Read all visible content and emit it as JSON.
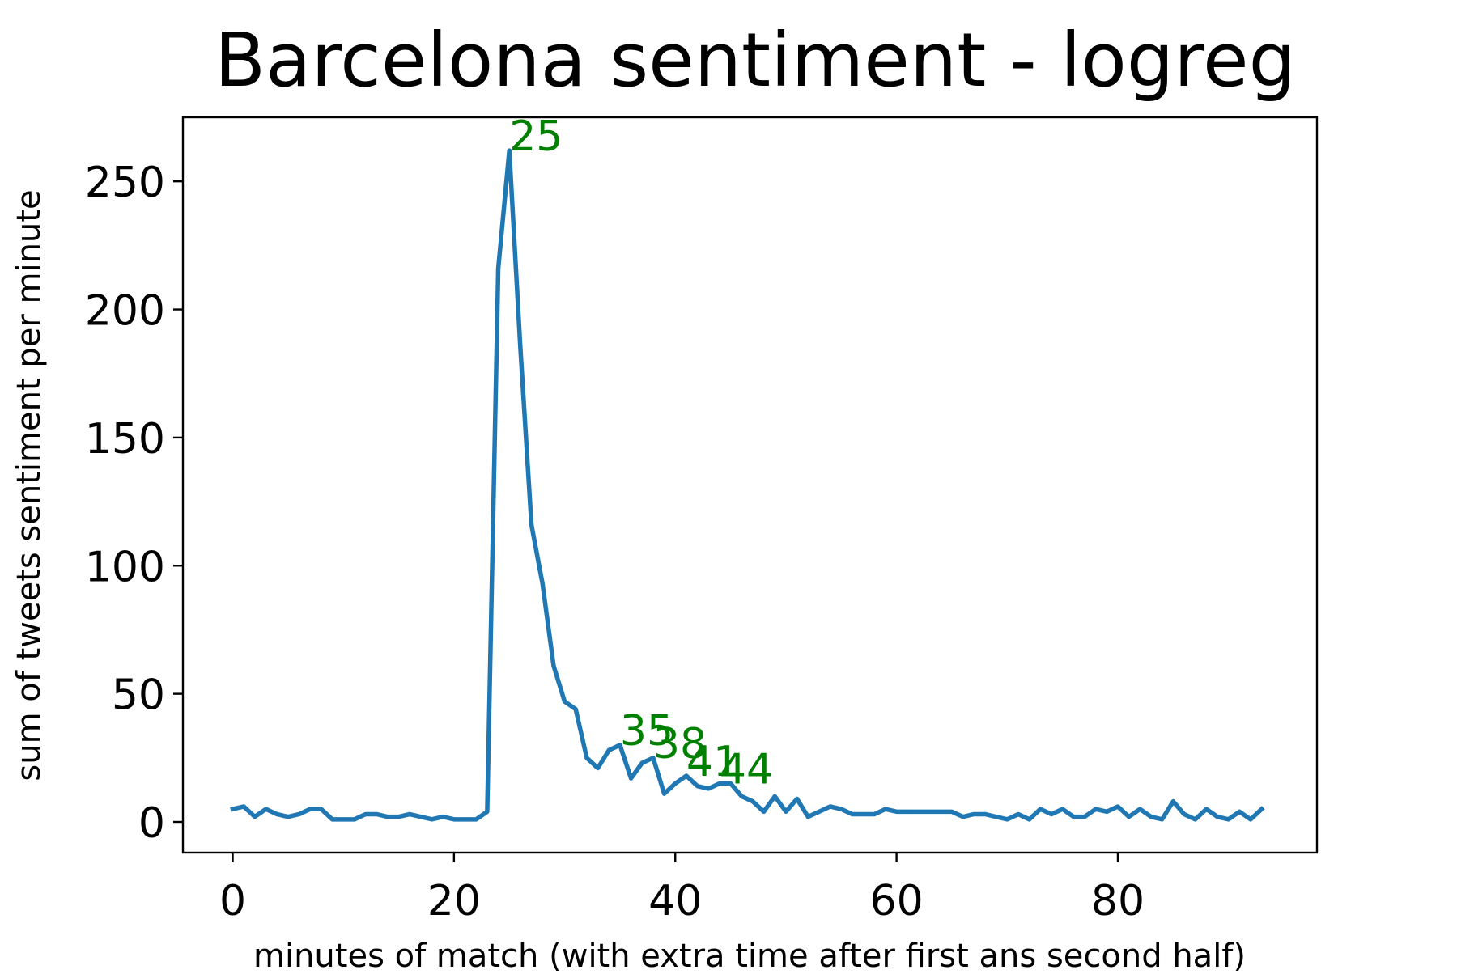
{
  "chart_data": {
    "type": "line",
    "title": "Barcelona sentiment - logreg",
    "xlabel": "minutes of match (with extra time after first ans second half)",
    "ylabel": "sum of tweets sentiment per minute",
    "xlim": [
      -4.5,
      98.0
    ],
    "ylim": [
      -12,
      275
    ],
    "xticks": [
      0,
      20,
      40,
      60,
      80
    ],
    "yticks": [
      0,
      50,
      100,
      150,
      200,
      250
    ],
    "grid": false,
    "series": [
      {
        "color": "#1f77b4",
        "x": [
          0,
          1,
          2,
          3,
          4,
          5,
          6,
          7,
          8,
          9,
          10,
          11,
          12,
          13,
          14,
          15,
          16,
          17,
          18,
          19,
          20,
          21,
          22,
          23,
          24,
          25,
          26,
          27,
          28,
          29,
          30,
          31,
          32,
          33,
          34,
          35,
          36,
          37,
          38,
          39,
          40,
          41,
          42,
          43,
          44,
          45,
          46,
          47,
          48,
          49,
          50,
          51,
          52,
          53,
          54,
          55,
          56,
          57,
          58,
          59,
          60,
          61,
          62,
          63,
          64,
          65,
          66,
          67,
          68,
          69,
          70,
          71,
          72,
          73,
          74,
          75,
          76,
          77,
          78,
          79,
          80,
          81,
          82,
          83,
          84,
          85,
          86,
          87,
          88,
          89,
          90,
          91,
          92,
          93
        ],
        "y": [
          5,
          6,
          2,
          5,
          3,
          2,
          3,
          5,
          5,
          1,
          1,
          1,
          3,
          3,
          2,
          2,
          3,
          2,
          1,
          2,
          1,
          1,
          1,
          4,
          216,
          262,
          185,
          116,
          93,
          61,
          47,
          44,
          25,
          21,
          28,
          30,
          17,
          23,
          25,
          11,
          15,
          18,
          14,
          13,
          15,
          15,
          10,
          8,
          4,
          10,
          4,
          9,
          2,
          4,
          6,
          5,
          3,
          3,
          3,
          5,
          4,
          4,
          4,
          4,
          4,
          4,
          2,
          3,
          3,
          2,
          1,
          3,
          1,
          5,
          3,
          5,
          2,
          2,
          5,
          4,
          6,
          2,
          5,
          2,
          1,
          8,
          3,
          1,
          5,
          2,
          1,
          4,
          1,
          5
        ]
      }
    ],
    "annotations": [
      {
        "label": "25",
        "x": 25,
        "y": 262
      },
      {
        "label": "35",
        "x": 35,
        "y": 30
      },
      {
        "label": "38",
        "x": 38,
        "y": 25
      },
      {
        "label": "41",
        "x": 41,
        "y": 18
      },
      {
        "label": "44",
        "x": 44,
        "y": 15
      }
    ]
  }
}
